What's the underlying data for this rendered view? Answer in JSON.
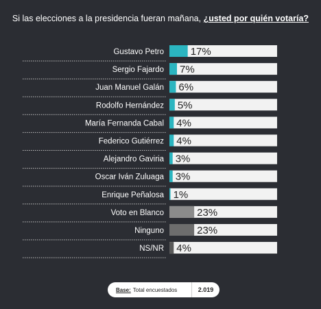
{
  "question": {
    "prefix": "Si las elecciones a la presidencia fueran mañana, ",
    "emphasis": "¿usted por quién votaría?"
  },
  "chart_data": {
    "type": "bar",
    "orientation": "horizontal",
    "categories": [
      "Gustavo Petro",
      "Sergio Fajardo",
      "Juan Manuel Galán",
      "Rodolfo Hernández",
      "María Fernanda Cabal",
      "Federico Gutiérrez",
      "Alejandro Gaviria",
      "Oscar Iván Zuluaga",
      "Enrique Peñalosa",
      "Voto en Blanco",
      "Ninguno",
      "NS/NR"
    ],
    "values": [
      17,
      7,
      6,
      5,
      4,
      4,
      3,
      3,
      1,
      23,
      23,
      4
    ],
    "value_labels": [
      "17%",
      "7%",
      "6%",
      "5%",
      "4%",
      "4%",
      "3%",
      "3%",
      "1%",
      "23%",
      "23%",
      "4%"
    ],
    "bar_colors": [
      "#2bb5c0",
      "#2bb5c0",
      "#2bb5c0",
      "#2bb5c0",
      "#2bb5c0",
      "#2bb5c0",
      "#2bb5c0",
      "#2bb5c0",
      "#2bb5c0",
      "#8b8b8b",
      "#6d6d6d",
      "#5a5a5a"
    ],
    "track_color": "#f2f2f2",
    "xlim": [
      0,
      100
    ]
  },
  "footer": {
    "base_label": "Base:",
    "base_text": "Total encuestados",
    "base_value": "2.019"
  }
}
